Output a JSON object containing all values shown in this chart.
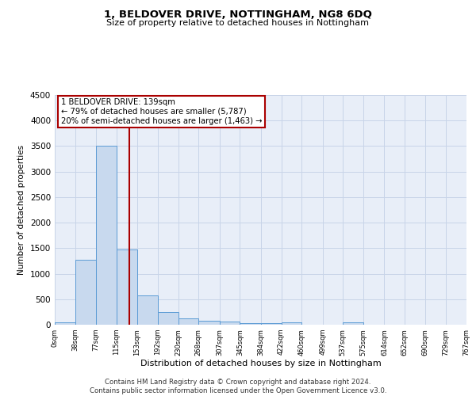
{
  "title": "1, BELDOVER DRIVE, NOTTINGHAM, NG8 6DQ",
  "subtitle": "Size of property relative to detached houses in Nottingham",
  "xlabel": "Distribution of detached houses by size in Nottingham",
  "ylabel": "Number of detached properties",
  "footer_line1": "Contains HM Land Registry data © Crown copyright and database right 2024.",
  "footer_line2": "Contains public sector information licensed under the Open Government Licence v3.0.",
  "bin_edges": [
    0,
    38,
    77,
    115,
    153,
    192,
    230,
    268,
    307,
    345,
    384,
    422,
    460,
    499,
    537,
    575,
    614,
    652,
    690,
    729,
    767
  ],
  "bar_heights": [
    50,
    1275,
    3500,
    1475,
    575,
    250,
    130,
    85,
    55,
    35,
    30,
    50,
    0,
    0,
    50,
    0,
    0,
    0,
    0,
    0
  ],
  "bar_color": "#c8d9ee",
  "bar_edge_color": "#5b9bd5",
  "grid_color": "#c8d4e8",
  "vline_x": 139,
  "vline_color": "#aa0000",
  "annotation_title": "1 BELDOVER DRIVE: 139sqm",
  "annotation_line1": "← 79% of detached houses are smaller (5,787)",
  "annotation_line2": "20% of semi-detached houses are larger (1,463) →",
  "annotation_box_color": "#aa0000",
  "ylim": [
    0,
    4500
  ],
  "yticks": [
    0,
    500,
    1000,
    1500,
    2000,
    2500,
    3000,
    3500,
    4000,
    4500
  ],
  "tick_labels": [
    "0sqm",
    "38sqm",
    "77sqm",
    "115sqm",
    "153sqm",
    "192sqm",
    "230sqm",
    "268sqm",
    "307sqm",
    "345sqm",
    "384sqm",
    "422sqm",
    "460sqm",
    "499sqm",
    "537sqm",
    "575sqm",
    "614sqm",
    "652sqm",
    "690sqm",
    "729sqm",
    "767sqm"
  ]
}
